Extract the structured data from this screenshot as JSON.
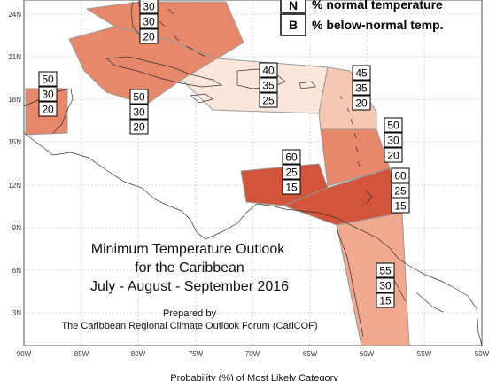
{
  "legend": [
    {
      "letter": "N",
      "text": "% normal temperature"
    },
    {
      "letter": "B",
      "text": "% below-normal temp."
    }
  ],
  "title": {
    "line1": "Minimum Temperature Outlook",
    "line2": "for the Caribbean",
    "line3": "July - August - September 2016"
  },
  "credit": {
    "line1": "Prepared by",
    "line2": "The Caribbean Regional Climate Outlook Forum (CariCOF)"
  },
  "footer": "Probability (%) of Most Likely Category",
  "axes": {
    "x_ticks": [
      "90W",
      "85W",
      "80W",
      "75W",
      "70W",
      "65W",
      "60W",
      "55W",
      "50W"
    ],
    "y_ticks": [
      "24N",
      "21N",
      "18N",
      "15N",
      "12N",
      "9N",
      "6N",
      "3N"
    ]
  },
  "colors": {
    "strong": "#d2543a",
    "medium": "#e8886a",
    "light": "#f0a98e",
    "pale": "#f6c8b4",
    "very_pale": "#fbe6dc"
  },
  "regions": [
    {
      "id": "bahamas",
      "A": 30,
      "N": 30,
      "B": 20,
      "color": "#e8886a"
    },
    {
      "id": "cuba",
      "A": 50,
      "N": 30,
      "B": 20,
      "color": "#e8886a"
    },
    {
      "id": "belize",
      "A": 50,
      "N": 30,
      "B": 20,
      "color": "#e8886a"
    },
    {
      "id": "greater-antilles",
      "A": 40,
      "N": 35,
      "B": 25,
      "color": "#fbe6dc"
    },
    {
      "id": "leeward-islands",
      "A": 45,
      "N": 35,
      "B": 20,
      "color": "#f6c8b4"
    },
    {
      "id": "windward-islands",
      "A": 50,
      "N": 30,
      "B": 20,
      "color": "#e8886a"
    },
    {
      "id": "abc-islands",
      "A": 60,
      "N": 25,
      "B": 15,
      "color": "#d2543a"
    },
    {
      "id": "trinidad",
      "A": 60,
      "N": 25,
      "B": 15,
      "color": "#d2543a"
    },
    {
      "id": "guianas",
      "A": 55,
      "N": 30,
      "B": 15,
      "color": "#f0a98e"
    }
  ]
}
